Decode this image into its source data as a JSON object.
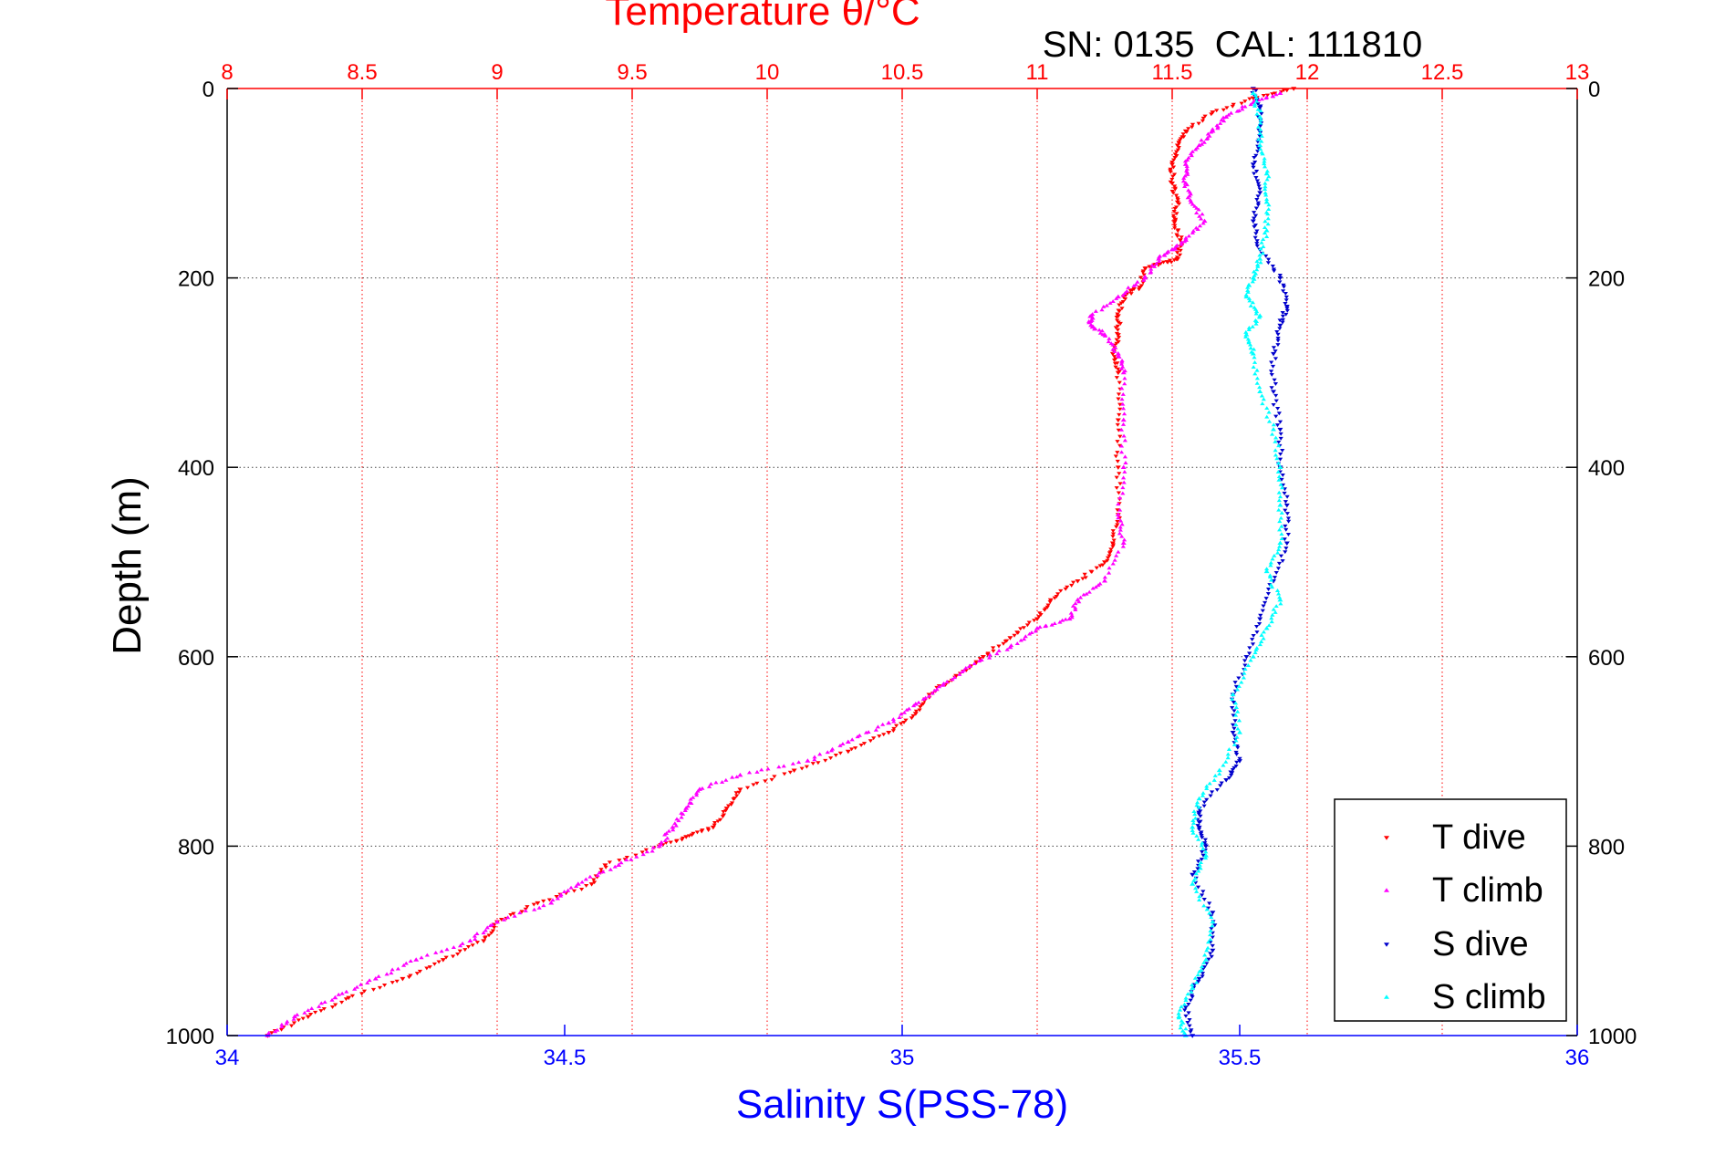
{
  "colors": {
    "t_dive": "#ff0000",
    "t_climb": "#ff00ff",
    "s_dive": "#0000cc",
    "s_climb": "#00ffff",
    "temperature_axis": "#ff0000",
    "salinity_axis": "#0000ff",
    "depth_axis": "#000000"
  },
  "chart_data": {
    "type": "scatter",
    "title": "Temperature θ/°C",
    "subtitle": "SN: 0135  CAL: 111810",
    "xlabel": "Salinity S(PSS-78)",
    "ylabel": "Depth (m)",
    "x_top_label": "Temperature θ/°C",
    "temperature_axis": {
      "range": [
        8,
        13
      ],
      "ticks": [
        "8",
        "8.5",
        "9",
        "9.5",
        "10",
        "10.5",
        "11",
        "11.5",
        "12",
        "12.5",
        "13"
      ],
      "tick_values": [
        8,
        8.5,
        9,
        9.5,
        10,
        10.5,
        11,
        11.5,
        12,
        12.5,
        13
      ],
      "grid": true
    },
    "salinity_axis": {
      "range": [
        34,
        36
      ],
      "ticks": [
        "34",
        "34.5",
        "35",
        "35.5",
        "36"
      ],
      "tick_values": [
        34,
        34.5,
        35,
        35.5,
        36
      ]
    },
    "depth_axis": {
      "range": [
        0,
        1000
      ],
      "reversed": true,
      "ticks": [
        "0",
        "200",
        "400",
        "600",
        "800",
        "1000"
      ],
      "tick_values": [
        0,
        200,
        400,
        600,
        800,
        1000
      ],
      "grid": true
    },
    "legend": {
      "position": "bottom-right"
    },
    "series": [
      {
        "name": "T dive",
        "axis": "temperature",
        "marker": "triangle-down",
        "points": [
          [
            11.95,
            0
          ],
          [
            11.8,
            10
          ],
          [
            11.65,
            25
          ],
          [
            11.55,
            45
          ],
          [
            11.52,
            60
          ],
          [
            11.5,
            80
          ],
          [
            11.5,
            100
          ],
          [
            11.52,
            120
          ],
          [
            11.51,
            140
          ],
          [
            11.53,
            160
          ],
          [
            11.52,
            180
          ],
          [
            11.45,
            185
          ],
          [
            11.4,
            190
          ],
          [
            11.38,
            210
          ],
          [
            11.32,
            220
          ],
          [
            11.3,
            240
          ],
          [
            11.3,
            260
          ],
          [
            11.28,
            280
          ],
          [
            11.3,
            300
          ],
          [
            11.3,
            350
          ],
          [
            11.3,
            400
          ],
          [
            11.3,
            450
          ],
          [
            11.28,
            480
          ],
          [
            11.25,
            500
          ],
          [
            11.15,
            520
          ],
          [
            11.05,
            540
          ],
          [
            11.0,
            560
          ],
          [
            10.9,
            580
          ],
          [
            10.8,
            600
          ],
          [
            10.7,
            620
          ],
          [
            10.6,
            640
          ],
          [
            10.55,
            660
          ],
          [
            10.45,
            680
          ],
          [
            10.3,
            700
          ],
          [
            10.1,
            720
          ],
          [
            9.9,
            740
          ],
          [
            9.85,
            760
          ],
          [
            9.8,
            780
          ],
          [
            9.7,
            790
          ],
          [
            9.6,
            800
          ],
          [
            9.4,
            820
          ],
          [
            9.35,
            840
          ],
          [
            9.15,
            860
          ],
          [
            9.0,
            880
          ],
          [
            8.95,
            900
          ],
          [
            8.8,
            920
          ],
          [
            8.65,
            940
          ],
          [
            8.45,
            960
          ],
          [
            8.3,
            980
          ],
          [
            8.15,
            1000
          ]
        ]
      },
      {
        "name": "T climb",
        "axis": "temperature",
        "marker": "triangle-up",
        "points": [
          [
            11.9,
            5
          ],
          [
            11.8,
            15
          ],
          [
            11.7,
            30
          ],
          [
            11.65,
            45
          ],
          [
            11.6,
            60
          ],
          [
            11.55,
            80
          ],
          [
            11.55,
            100
          ],
          [
            11.57,
            120
          ],
          [
            11.62,
            140
          ],
          [
            11.55,
            160
          ],
          [
            11.5,
            170
          ],
          [
            11.45,
            180
          ],
          [
            11.4,
            200
          ],
          [
            11.3,
            220
          ],
          [
            11.2,
            240
          ],
          [
            11.2,
            250
          ],
          [
            11.25,
            260
          ],
          [
            11.3,
            280
          ],
          [
            11.32,
            300
          ],
          [
            11.32,
            350
          ],
          [
            11.32,
            400
          ],
          [
            11.3,
            450
          ],
          [
            11.32,
            480
          ],
          [
            11.25,
            520
          ],
          [
            11.15,
            540
          ],
          [
            11.12,
            560
          ],
          [
            11.0,
            570
          ],
          [
            10.9,
            590
          ],
          [
            10.75,
            610
          ],
          [
            10.65,
            630
          ],
          [
            10.55,
            650
          ],
          [
            10.45,
            670
          ],
          [
            10.3,
            690
          ],
          [
            10.15,
            710
          ],
          [
            9.9,
            725
          ],
          [
            9.75,
            740
          ],
          [
            9.7,
            760
          ],
          [
            9.65,
            780
          ],
          [
            9.6,
            800
          ],
          [
            9.45,
            820
          ],
          [
            9.3,
            840
          ],
          [
            9.2,
            860
          ],
          [
            9.0,
            880
          ],
          [
            8.9,
            900
          ],
          [
            8.7,
            920
          ],
          [
            8.55,
            940
          ],
          [
            8.4,
            960
          ],
          [
            8.25,
            980
          ],
          [
            8.15,
            1000
          ]
        ]
      },
      {
        "name": "S dive",
        "axis": "salinity",
        "marker": "triangle-down",
        "points": [
          [
            35.52,
            0
          ],
          [
            35.53,
            20
          ],
          [
            35.53,
            50
          ],
          [
            35.52,
            80
          ],
          [
            35.53,
            110
          ],
          [
            35.52,
            140
          ],
          [
            35.53,
            170
          ],
          [
            35.56,
            200
          ],
          [
            35.57,
            230
          ],
          [
            35.56,
            250
          ],
          [
            35.55,
            280
          ],
          [
            35.55,
            320
          ],
          [
            35.56,
            360
          ],
          [
            35.56,
            400
          ],
          [
            35.57,
            440
          ],
          [
            35.57,
            480
          ],
          [
            35.55,
            520
          ],
          [
            35.53,
            560
          ],
          [
            35.51,
            600
          ],
          [
            35.49,
            640
          ],
          [
            35.49,
            680
          ],
          [
            35.5,
            710
          ],
          [
            35.48,
            730
          ],
          [
            35.44,
            760
          ],
          [
            35.44,
            780
          ],
          [
            35.45,
            800
          ],
          [
            35.43,
            830
          ],
          [
            35.46,
            870
          ],
          [
            35.46,
            910
          ],
          [
            35.44,
            940
          ],
          [
            35.42,
            970
          ],
          [
            35.43,
            1000
          ]
        ]
      },
      {
        "name": "S climb",
        "axis": "salinity",
        "marker": "triangle-up",
        "points": [
          [
            35.52,
            5
          ],
          [
            35.53,
            30
          ],
          [
            35.53,
            60
          ],
          [
            35.54,
            90
          ],
          [
            35.54,
            120
          ],
          [
            35.54,
            150
          ],
          [
            35.53,
            180
          ],
          [
            35.52,
            200
          ],
          [
            35.51,
            220
          ],
          [
            35.53,
            240
          ],
          [
            35.51,
            260
          ],
          [
            35.52,
            280
          ],
          [
            35.53,
            320
          ],
          [
            35.55,
            360
          ],
          [
            35.56,
            400
          ],
          [
            35.56,
            440
          ],
          [
            35.56,
            480
          ],
          [
            35.54,
            510
          ],
          [
            35.56,
            540
          ],
          [
            35.54,
            570
          ],
          [
            35.52,
            600
          ],
          [
            35.49,
            640
          ],
          [
            35.5,
            680
          ],
          [
            35.47,
            720
          ],
          [
            35.44,
            750
          ],
          [
            35.43,
            780
          ],
          [
            35.45,
            810
          ],
          [
            35.43,
            840
          ],
          [
            35.46,
            880
          ],
          [
            35.45,
            920
          ],
          [
            35.43,
            950
          ],
          [
            35.41,
            980
          ],
          [
            35.42,
            1000
          ]
        ]
      }
    ]
  }
}
